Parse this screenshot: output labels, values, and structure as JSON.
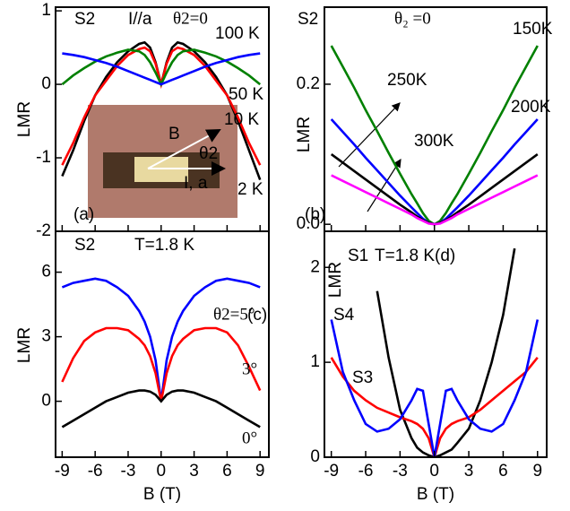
{
  "chart_data": [
    {
      "type": "line",
      "ylabel": "LMR",
      "xlim": [
        -9.6,
        9.8
      ],
      "ylim": [
        -2,
        1.05
      ],
      "xticks": [
        -9,
        -6,
        -3,
        0,
        3,
        6,
        9
      ],
      "yticks": [
        -2,
        -1,
        0,
        1
      ],
      "x": [
        -9,
        -8,
        -7,
        -6,
        -5,
        -4,
        -3,
        -2,
        -1.5,
        -1,
        -0.5,
        0,
        0.5,
        1,
        1.5,
        2,
        3,
        4,
        5,
        6,
        7,
        8,
        9
      ],
      "series": [
        {
          "name": "2 K",
          "color": "#000000",
          "values": [
            -1.25,
            -0.9,
            -0.5,
            -0.15,
            0.1,
            0.3,
            0.45,
            0.55,
            0.57,
            0.5,
            0.3,
            0,
            0.3,
            0.5,
            0.57,
            0.55,
            0.45,
            0.3,
            0.1,
            -0.15,
            -0.5,
            -0.9,
            -1.3
          ]
        },
        {
          "name": "10 K",
          "color": "#ff0000",
          "values": [
            -1.1,
            -0.8,
            -0.45,
            -0.15,
            0.05,
            0.25,
            0.4,
            0.48,
            0.5,
            0.45,
            0.28,
            0,
            0.28,
            0.45,
            0.5,
            0.48,
            0.4,
            0.25,
            0.05,
            -0.15,
            -0.45,
            -0.8,
            -1.1
          ]
        },
        {
          "name": "50 K",
          "color": "#008000",
          "values": [
            0,
            0.12,
            0.22,
            0.31,
            0.38,
            0.43,
            0.47,
            0.45,
            0.4,
            0.3,
            0.16,
            0,
            0.16,
            0.3,
            0.4,
            0.45,
            0.47,
            0.43,
            0.38,
            0.31,
            0.22,
            0.12,
            0
          ]
        },
        {
          "name": "100 K",
          "color": "#0000ff",
          "values": [
            0.42,
            0.4,
            0.37,
            0.33,
            0.29,
            0.24,
            0.18,
            0.12,
            0.09,
            0.06,
            0.03,
            0,
            0.03,
            0.06,
            0.09,
            0.12,
            0.18,
            0.24,
            0.29,
            0.33,
            0.37,
            0.4,
            0.42
          ]
        }
      ],
      "annotations": [
        {
          "text": "S2"
        },
        {
          "text": "I//a"
        },
        {
          "text": "θ2=0"
        },
        {
          "text": "100 K"
        },
        {
          "text": "50 K"
        },
        {
          "text": "10 K"
        },
        {
          "text": "2 K"
        },
        {
          "text": "(a)"
        }
      ],
      "inset": {
        "labels": [
          "B",
          "θ2",
          "I, a"
        ]
      }
    },
    {
      "type": "line",
      "ylabel": "LMR",
      "xlim": [
        -9.6,
        9.8
      ],
      "ylim": [
        -0.01,
        0.31
      ],
      "xticks": [
        -9,
        -6,
        -3,
        0,
        3,
        6,
        9
      ],
      "yticks": [
        {
          "value": 0,
          "label": "0.0"
        },
        {
          "value": 0.2,
          "label": "0.2"
        }
      ],
      "x": [
        -9,
        -8,
        -7,
        -6,
        -5,
        -4,
        -3,
        -2,
        -1.5,
        -1,
        -0.5,
        0,
        0.5,
        1,
        1.5,
        2,
        3,
        4,
        5,
        6,
        7,
        8,
        9
      ],
      "series": [
        {
          "name": "150K",
          "color": "#008000",
          "values": [
            0.255,
            0.225,
            0.195,
            0.163,
            0.133,
            0.102,
            0.072,
            0.043,
            0.03,
            0.016,
            0.005,
            0,
            0.005,
            0.016,
            0.03,
            0.043,
            0.072,
            0.102,
            0.133,
            0.163,
            0.195,
            0.225,
            0.255
          ]
        },
        {
          "name": "200K",
          "color": "#0000ff",
          "values": [
            0.15,
            0.132,
            0.114,
            0.095,
            0.077,
            0.059,
            0.041,
            0.024,
            0.016,
            0.008,
            0.002,
            0,
            0.002,
            0.008,
            0.016,
            0.024,
            0.041,
            0.059,
            0.077,
            0.095,
            0.114,
            0.132,
            0.15
          ]
        },
        {
          "name": "250K",
          "color": "#000000",
          "values": [
            0.1,
            0.088,
            0.076,
            0.064,
            0.052,
            0.04,
            0.028,
            0.017,
            0.011,
            0.006,
            0.002,
            0,
            0.002,
            0.006,
            0.011,
            0.017,
            0.028,
            0.04,
            0.052,
            0.064,
            0.076,
            0.088,
            0.1
          ]
        },
        {
          "name": "300K",
          "color": "#ff00ff",
          "values": [
            0.07,
            0.062,
            0.054,
            0.046,
            0.038,
            0.03,
            0.022,
            0.014,
            0.009,
            0.005,
            0.001,
            0,
            0.001,
            0.005,
            0.009,
            0.014,
            0.022,
            0.03,
            0.038,
            0.046,
            0.054,
            0.062,
            0.07
          ]
        }
      ],
      "annotations": [
        {
          "text": "S2"
        },
        {
          "text": "θ₂ =0"
        },
        {
          "text": "150K"
        },
        {
          "text": "250K"
        },
        {
          "text": "200K"
        },
        {
          "text": "300K"
        },
        {
          "text": "(b)"
        }
      ]
    },
    {
      "type": "line",
      "ylabel": "LMR",
      "xlabel": "B (T)",
      "xlim": [
        -9.6,
        9.8
      ],
      "ylim": [
        -2.6,
        7.9
      ],
      "xticks": [
        -9,
        -6,
        -3,
        0,
        3,
        6,
        9
      ],
      "yticks": [
        0,
        3,
        6
      ],
      "x": [
        -9,
        -8,
        -7,
        -6,
        -5,
        -4,
        -3,
        -2,
        -1.5,
        -1,
        -0.5,
        0,
        0.5,
        1,
        1.5,
        2,
        3,
        4,
        5,
        6,
        7,
        8,
        9
      ],
      "series": [
        {
          "name": "θ2=5°",
          "color": "#0000ff",
          "values": [
            5.3,
            5.5,
            5.6,
            5.7,
            5.6,
            5.3,
            4.9,
            4.2,
            3.7,
            3.0,
            1.9,
            0,
            1.9,
            3.0,
            3.7,
            4.2,
            4.9,
            5.3,
            5.6,
            5.7,
            5.6,
            5.5,
            5.3
          ]
        },
        {
          "name": "3°",
          "color": "#ff0000",
          "values": [
            0.9,
            2.0,
            2.8,
            3.2,
            3.4,
            3.4,
            3.3,
            2.9,
            2.6,
            2.1,
            1.3,
            0,
            1.3,
            2.1,
            2.6,
            2.9,
            3.3,
            3.4,
            3.4,
            3.2,
            2.6,
            1.6,
            0.5
          ]
        },
        {
          "name": "0°",
          "color": "#000000",
          "values": [
            -1.2,
            -0.9,
            -0.6,
            -0.3,
            0,
            0.2,
            0.4,
            0.5,
            0.5,
            0.45,
            0.3,
            0,
            0.3,
            0.45,
            0.5,
            0.5,
            0.4,
            0.2,
            0,
            -0.3,
            -0.6,
            -0.9,
            -1.2
          ]
        }
      ],
      "annotations": [
        {
          "text": "S2"
        },
        {
          "text": "T=1.8 K"
        },
        {
          "text": "(c)"
        }
      ]
    },
    {
      "type": "line",
      "ylabel": "LMR",
      "xlabel": "B (T)",
      "xlim": [
        -9.6,
        9.8
      ],
      "ylim": [
        0,
        2.38
      ],
      "xticks": [
        -9,
        -6,
        -3,
        0,
        3,
        6,
        9
      ],
      "yticks": [
        0,
        1,
        2
      ],
      "x": [
        -9,
        -8,
        -7,
        -6,
        -5,
        -4,
        -3,
        -2,
        -1.5,
        -1,
        -0.5,
        0,
        0.5,
        1,
        1.5,
        2,
        3,
        4,
        5,
        6,
        7,
        8,
        9
      ],
      "series": [
        {
          "name": "S1",
          "color": "#000000",
          "values": [
            null,
            null,
            null,
            null,
            1.75,
            1.05,
            0.5,
            0.2,
            0.1,
            0.05,
            0.02,
            0,
            0.02,
            0.05,
            0.08,
            0.15,
            0.3,
            0.6,
            1.0,
            1.5,
            2.2,
            null,
            null
          ]
        },
        {
          "name": "S3",
          "color": "#ff0000",
          "values": [
            1.05,
            0.85,
            0.7,
            0.6,
            0.52,
            0.47,
            0.42,
            0.38,
            0.35,
            0.3,
            0.2,
            0,
            0.2,
            0.3,
            0.35,
            0.38,
            0.42,
            0.5,
            0.6,
            0.7,
            0.8,
            0.9,
            1.05
          ]
        },
        {
          "name": "S4",
          "color": "#0000ff",
          "values": [
            1.45,
            0.9,
            0.6,
            0.35,
            0.27,
            0.3,
            0.4,
            0.6,
            0.72,
            0.7,
            0.35,
            0,
            0.35,
            0.7,
            0.72,
            0.6,
            0.4,
            0.3,
            0.27,
            0.35,
            0.6,
            0.9,
            1.45
          ]
        }
      ],
      "annotations": [
        {
          "text": "T=1.8 K"
        },
        {
          "text": "(d)"
        }
      ]
    }
  ]
}
